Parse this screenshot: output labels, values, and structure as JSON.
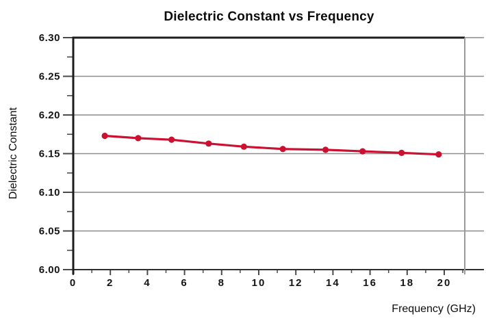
{
  "chart_data": {
    "type": "line",
    "title": "Dielectric Constant vs Frequency",
    "xlabel": "Frequency (GHz)",
    "ylabel": "Dielectric Constant",
    "xlim": [
      0,
      21.1
    ],
    "ylim": [
      6.0,
      6.3
    ],
    "x_tick_labels": [
      "0",
      "2",
      "4",
      "6",
      "8",
      "10",
      "12",
      "14",
      "16",
      "18",
      "20"
    ],
    "x_minor_ticks": [
      1,
      3,
      5,
      7,
      9,
      11,
      13,
      15,
      17,
      19,
      21
    ],
    "y_tick_labels": [
      "6.00",
      "6.05",
      "6.10",
      "6.15",
      "6.20",
      "6.25",
      "6.30"
    ],
    "y_minor_ticks": [
      6.025,
      6.075,
      6.125,
      6.175,
      6.225,
      6.275
    ],
    "grid": "horizontal-major",
    "legend": "none",
    "series": [
      {
        "name": "Dielectric Constant",
        "marker": "circle",
        "color": "#cb1132",
        "x": [
          1.7,
          3.5,
          5.3,
          7.3,
          9.2,
          11.3,
          13.6,
          15.6,
          17.7,
          19.7
        ],
        "y": [
          6.173,
          6.17,
          6.168,
          6.163,
          6.159,
          6.156,
          6.155,
          6.153,
          6.151,
          6.149
        ]
      }
    ],
    "colors": {
      "background": "#ffffff",
      "grid": "#8c8c8c",
      "axis_spine": "#1c1c1c",
      "bottom_axis": "#2e2e2e",
      "right_border": "#999999",
      "tick": "#4a4a4a",
      "tick_text": "#141414",
      "series": "#cb1132"
    }
  }
}
